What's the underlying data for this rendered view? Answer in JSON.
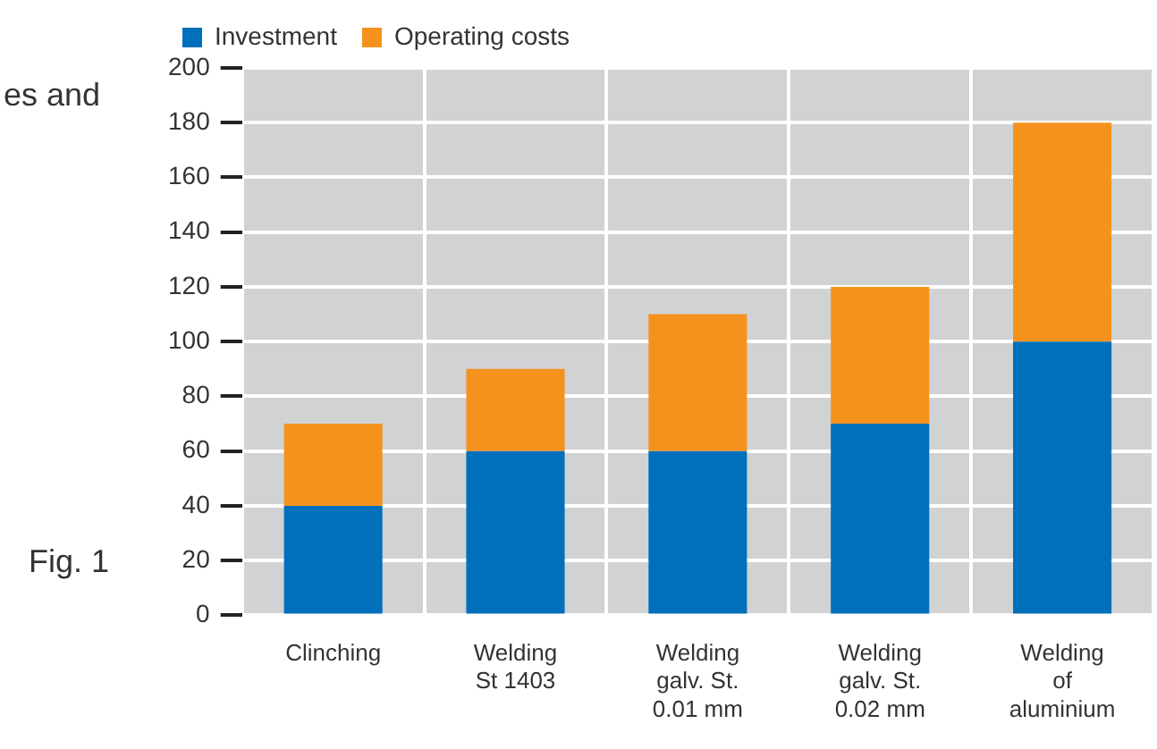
{
  "chart_data": {
    "type": "bar",
    "stacked": true,
    "categories": [
      "Clinching",
      "Welding\nSt 1403",
      "Welding\ngalv. St.\n0.01 mm",
      "Welding\ngalv. St.\n0.02 mm",
      "Welding\nof\naluminium"
    ],
    "series": [
      {
        "name": "Investment",
        "color": "#0070bb",
        "values": [
          40,
          60,
          60,
          70,
          100
        ]
      },
      {
        "name": "Operating costs",
        "color": "#f5921e",
        "values": [
          30,
          30,
          50,
          50,
          80
        ]
      }
    ],
    "ylim": [
      0,
      200
    ],
    "yticks": [
      0,
      20,
      40,
      60,
      80,
      100,
      120,
      140,
      160,
      180,
      200
    ],
    "grid": true,
    "legend": "top",
    "annotations": [
      "es and",
      "Fig. 1"
    ]
  }
}
